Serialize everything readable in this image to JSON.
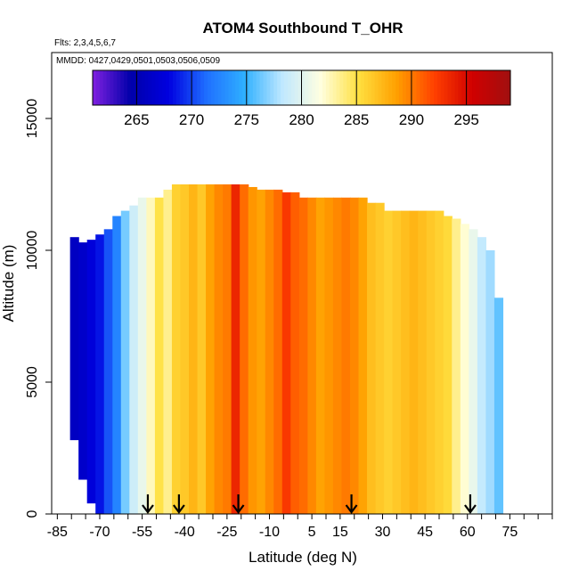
{
  "title": "ATOM4 Southbound T_OHR",
  "flights_note": "Flts: 2,3,4,5,6,7",
  "dates_note": "MMDD: 0427,0429,0501,0503,0506,0509",
  "chart_data": {
    "type": "heatmap",
    "title": "ATOM4 Southbound T_OHR",
    "xlabel": "Latitude (deg N)",
    "ylabel": "Altitude (m)",
    "xlim": [
      -87,
      90
    ],
    "ylim": [
      0,
      17500
    ],
    "x_ticks": [
      -85,
      -70,
      -55,
      -40,
      -25,
      -10,
      5,
      15,
      30,
      45,
      60,
      75
    ],
    "x_minor_step": 5,
    "y_ticks": [
      0,
      5000,
      10000,
      15000
    ],
    "colorbar": {
      "label_ticks": [
        265,
        270,
        275,
        280,
        285,
        290,
        295
      ],
      "range": [
        261,
        299
      ],
      "colors": [
        "#8020e0",
        "#0000aa",
        "#0000e0",
        "#1f6fff",
        "#2fb0ff",
        "#c0e8ff",
        "#ffffe0",
        "#ffe040",
        "#ffa000",
        "#ff4000",
        "#d00000",
        "#a01010"
      ]
    },
    "arrows_lat": [
      -53,
      -42,
      -21,
      19,
      61
    ],
    "columns": [
      {
        "x": -79,
        "top": 10500,
        "bottom": 2800,
        "value": 266.0
      },
      {
        "x": -76,
        "top": 10300,
        "bottom": 1300,
        "value": 266.5
      },
      {
        "x": -73,
        "top": 10400,
        "bottom": 400,
        "value": 267.5
      },
      {
        "x": -70,
        "top": 10600,
        "bottom": 0,
        "value": 268.5
      },
      {
        "x": -67,
        "top": 10800,
        "bottom": 0,
        "value": 270.5
      },
      {
        "x": -64,
        "top": 11300,
        "bottom": 0,
        "value": 272.5
      },
      {
        "x": -61,
        "top": 11500,
        "bottom": 0,
        "value": 276.5
      },
      {
        "x": -58,
        "top": 11700,
        "bottom": 0,
        "value": 279.0
      },
      {
        "x": -55,
        "top": 12000,
        "bottom": 0,
        "value": 280.5
      },
      {
        "x": -52,
        "top": 12000,
        "bottom": 0,
        "value": 282.5
      },
      {
        "x": -49,
        "top": 12000,
        "bottom": 0,
        "value": 285.0
      },
      {
        "x": -46,
        "top": 12300,
        "bottom": 0,
        "value": 283.5
      },
      {
        "x": -43,
        "top": 12500,
        "bottom": 0,
        "value": 286.0
      },
      {
        "x": -40,
        "top": 12500,
        "bottom": 0,
        "value": 286.5
      },
      {
        "x": -37,
        "top": 12500,
        "bottom": 0,
        "value": 287.5
      },
      {
        "x": -34,
        "top": 12500,
        "bottom": 0,
        "value": 286.5
      },
      {
        "x": -31,
        "top": 12500,
        "bottom": 0,
        "value": 288.5
      },
      {
        "x": -28,
        "top": 12500,
        "bottom": 0,
        "value": 289.5
      },
      {
        "x": -25,
        "top": 12500,
        "bottom": 0,
        "value": 290.0
      },
      {
        "x": -22,
        "top": 12500,
        "bottom": 0,
        "value": 293.5
      },
      {
        "x": -19,
        "top": 12500,
        "bottom": 0,
        "value": 290.5
      },
      {
        "x": -16,
        "top": 12400,
        "bottom": 0,
        "value": 289.0
      },
      {
        "x": -13,
        "top": 12300,
        "bottom": 0,
        "value": 288.5
      },
      {
        "x": -10,
        "top": 12300,
        "bottom": 0,
        "value": 289.5
      },
      {
        "x": -7,
        "top": 12300,
        "bottom": 0,
        "value": 290.5
      },
      {
        "x": -4,
        "top": 12200,
        "bottom": 0,
        "value": 292.5
      },
      {
        "x": -1,
        "top": 12200,
        "bottom": 0,
        "value": 291.0
      },
      {
        "x": 2,
        "top": 12000,
        "bottom": 0,
        "value": 290.5
      },
      {
        "x": 5,
        "top": 12000,
        "bottom": 0,
        "value": 289.5
      },
      {
        "x": 8,
        "top": 12000,
        "bottom": 0,
        "value": 288.5
      },
      {
        "x": 11,
        "top": 12000,
        "bottom": 0,
        "value": 289.0
      },
      {
        "x": 14,
        "top": 12000,
        "bottom": 0,
        "value": 289.5
      },
      {
        "x": 17,
        "top": 12000,
        "bottom": 0,
        "value": 290.0
      },
      {
        "x": 20,
        "top": 12000,
        "bottom": 0,
        "value": 289.5
      },
      {
        "x": 23,
        "top": 12000,
        "bottom": 0,
        "value": 288.5
      },
      {
        "x": 26,
        "top": 11800,
        "bottom": 0,
        "value": 287.0
      },
      {
        "x": 29,
        "top": 11800,
        "bottom": 0,
        "value": 286.5
      },
      {
        "x": 32,
        "top": 11500,
        "bottom": 0,
        "value": 286.0
      },
      {
        "x": 35,
        "top": 11500,
        "bottom": 0,
        "value": 286.5
      },
      {
        "x": 38,
        "top": 11500,
        "bottom": 0,
        "value": 287.0
      },
      {
        "x": 41,
        "top": 11500,
        "bottom": 0,
        "value": 287.5
      },
      {
        "x": 44,
        "top": 11500,
        "bottom": 0,
        "value": 287.0
      },
      {
        "x": 47,
        "top": 11500,
        "bottom": 0,
        "value": 286.5
      },
      {
        "x": 50,
        "top": 11500,
        "bottom": 0,
        "value": 286.0
      },
      {
        "x": 53,
        "top": 11300,
        "bottom": 0,
        "value": 285.5
      },
      {
        "x": 56,
        "top": 11200,
        "bottom": 0,
        "value": 283.5
      },
      {
        "x": 59,
        "top": 11000,
        "bottom": 0,
        "value": 282.0
      },
      {
        "x": 62,
        "top": 10800,
        "bottom": 0,
        "value": 280.5
      },
      {
        "x": 65,
        "top": 10500,
        "bottom": 0,
        "value": 278.5
      },
      {
        "x": 68,
        "top": 10000,
        "bottom": 0,
        "value": 277.5
      },
      {
        "x": 71,
        "top": 8200,
        "bottom": 0,
        "value": 276.0
      }
    ]
  }
}
